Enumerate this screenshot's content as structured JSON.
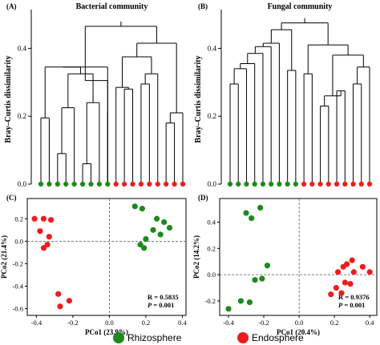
{
  "chart_data": [
    {
      "id": "A",
      "type": "dendrogram",
      "panel_label": "(A)",
      "title": "Bacterial community",
      "ylabel": "Bray–Curtis dissimilarity",
      "yticks": [
        0.0,
        0.2,
        0.4
      ],
      "ylim": [
        0,
        0.5
      ],
      "leaves": [
        "R",
        "R",
        "R",
        "R",
        "R",
        "R",
        "R",
        "R",
        "R",
        "E",
        "E",
        "E",
        "E",
        "E",
        "E",
        "E",
        "E",
        "E"
      ],
      "leaf_heights": [
        0.195,
        0.345,
        0.225,
        0.27,
        0.21,
        0.305,
        0.24,
        0.285,
        0.325,
        0.18,
        0.21
      ],
      "merge_heights": [
        0.04,
        0.06,
        0.09,
        0.12,
        0.27,
        0.31,
        0.345,
        0.375,
        0.395,
        0.415,
        0.44,
        0.465
      ]
    },
    {
      "id": "B",
      "type": "dendrogram",
      "panel_label": "(B)",
      "title": "Fungal community",
      "ylabel": "Bray–Curtis dissimilarity",
      "yticks": [
        0.0,
        0.2,
        0.4
      ],
      "ylim": [
        0,
        0.5
      ],
      "leaves": [
        "R",
        "R",
        "R",
        "R",
        "R",
        "R",
        "R",
        "R",
        "R",
        "E",
        "E",
        "E",
        "E",
        "E",
        "E",
        "E",
        "E",
        "E"
      ],
      "leaf_heights": [
        0.295,
        0.34,
        0.355,
        0.385,
        0.405,
        0.415,
        0.365,
        0.325,
        0.23,
        0.275,
        0.22,
        0.295
      ],
      "merge_heights": [
        0.02,
        0.05,
        0.08,
        0.11,
        0.325,
        0.35,
        0.38,
        0.41,
        0.435,
        0.455,
        0.475
      ]
    },
    {
      "id": "C",
      "type": "scatter",
      "panel_label": "(C)",
      "xlabel": "PCo1 (23.9%)",
      "ylabel": "PCo2 (21.4%)",
      "xlim": [
        -0.45,
        0.42
      ],
      "ylim": [
        -0.66,
        0.38
      ],
      "xticks": [
        -0.4,
        -0.2,
        0.0,
        0.2,
        0.4
      ],
      "yticks": [
        -0.6,
        -0.4,
        -0.2,
        0.0,
        0.2
      ],
      "stats": {
        "r": "R = 0.5835",
        "p_label": "P",
        "p_value": " = 0.001"
      },
      "series": [
        {
          "color": "#1a8a1a",
          "points": [
            [
              0.14,
              0.31
            ],
            [
              0.18,
              0.29
            ],
            [
              0.26,
              0.2
            ],
            [
              0.3,
              0.17
            ],
            [
              0.33,
              0.12
            ],
            [
              0.28,
              0.06
            ],
            [
              0.2,
              0.02
            ],
            [
              0.17,
              -0.03
            ],
            [
              0.19,
              -0.06
            ],
            [
              0.24,
              0.1
            ]
          ]
        },
        {
          "color": "#ee1c1c",
          "points": [
            [
              -0.41,
              0.2
            ],
            [
              -0.36,
              0.2
            ],
            [
              -0.32,
              0.19
            ],
            [
              -0.38,
              0.09
            ],
            [
              -0.33,
              0.04
            ],
            [
              -0.34,
              -0.03
            ],
            [
              -0.36,
              -0.06
            ],
            [
              -0.28,
              -0.47
            ],
            [
              -0.22,
              -0.53
            ],
            [
              -0.27,
              -0.58
            ]
          ]
        }
      ]
    },
    {
      "id": "D",
      "type": "scatter",
      "panel_label": "(D)",
      "xlabel": "PCo1 (20.4%)",
      "ylabel": "PCo2 (14.2%)",
      "xlim": [
        -0.45,
        0.44
      ],
      "ylim": [
        -0.31,
        0.58
      ],
      "xticks": [
        -0.4,
        -0.2,
        0.0,
        0.2,
        0.4
      ],
      "yticks": [
        -0.2,
        0.0,
        0.2,
        0.4
      ],
      "stats": {
        "r": "R = 0.9376",
        "p_label": "P",
        "p_value": " = 0.001"
      },
      "series": [
        {
          "color": "#1a8a1a",
          "points": [
            [
              -0.3,
              0.47
            ],
            [
              -0.27,
              0.43
            ],
            [
              -0.22,
              0.51
            ],
            [
              -0.18,
              0.07
            ],
            [
              -0.21,
              -0.03
            ],
            [
              -0.25,
              -0.04
            ],
            [
              -0.33,
              -0.2
            ],
            [
              -0.28,
              -0.21
            ],
            [
              -0.4,
              -0.26
            ]
          ]
        },
        {
          "color": "#ee1c1c",
          "points": [
            [
              0.27,
              0.08
            ],
            [
              0.3,
              0.11
            ],
            [
              0.25,
              0.06
            ],
            [
              0.31,
              0.02
            ],
            [
              0.36,
              0.06
            ],
            [
              0.4,
              0.02
            ],
            [
              0.22,
              0.02
            ],
            [
              0.26,
              -0.06
            ],
            [
              0.21,
              -0.1
            ],
            [
              0.24,
              -0.14
            ],
            [
              0.29,
              -0.07
            ],
            [
              0.18,
              -0.15
            ]
          ]
        }
      ]
    }
  ],
  "legend": {
    "items": [
      {
        "label": "Rhizosphere",
        "color": "#1a8a1a"
      },
      {
        "label": "Endosphere",
        "color": "#ee1c1c"
      }
    ]
  }
}
